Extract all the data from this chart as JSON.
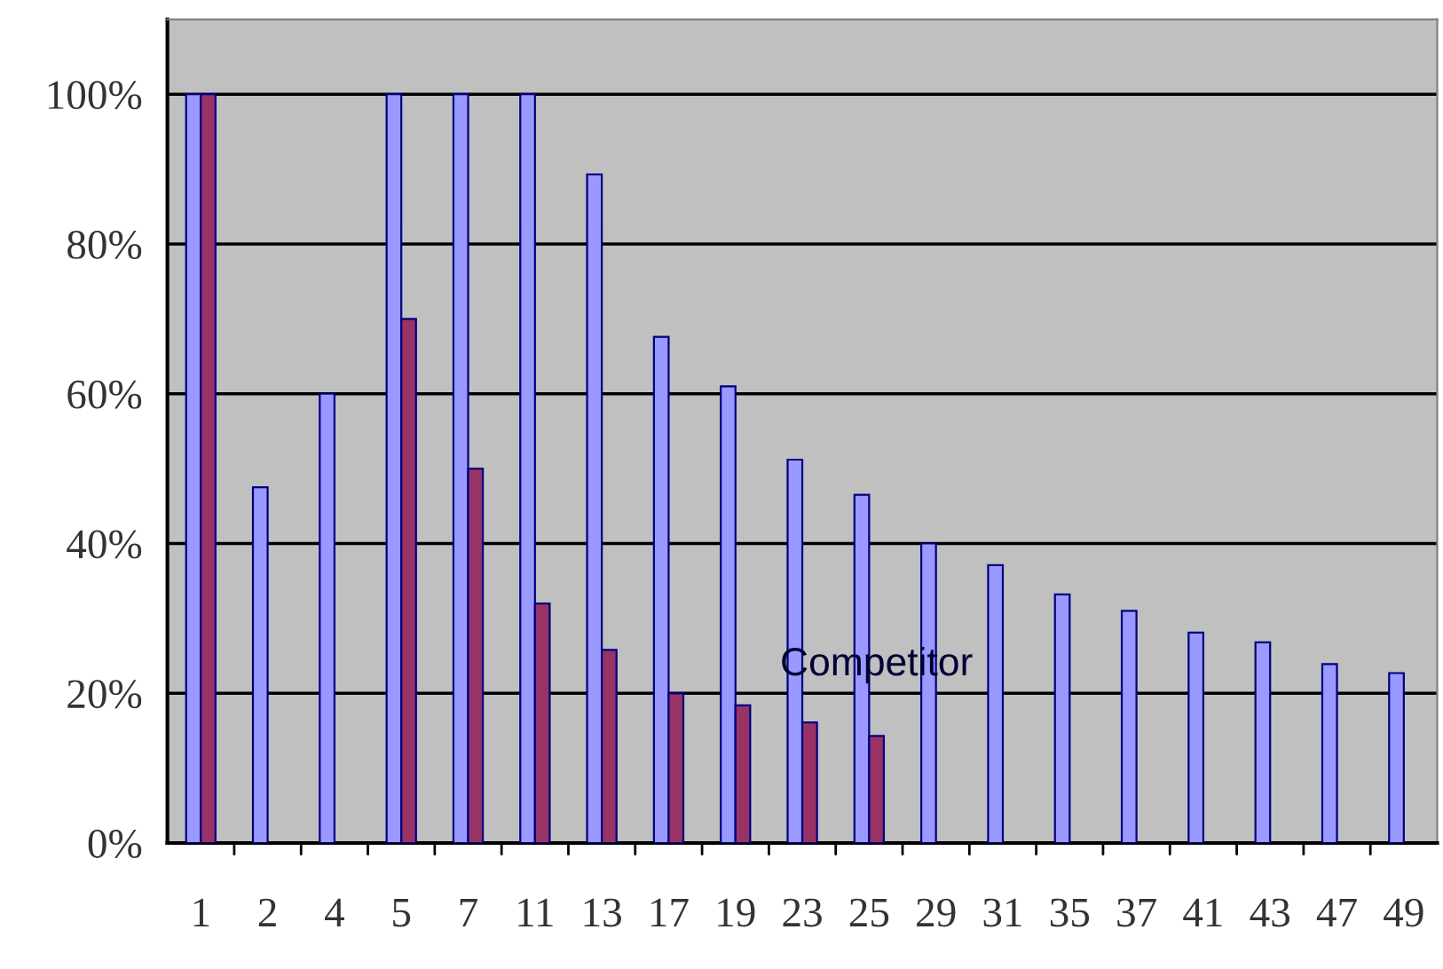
{
  "chart_data": {
    "type": "bar",
    "categories": [
      "1",
      "2",
      "4",
      "5",
      "7",
      "11",
      "13",
      "17",
      "19",
      "23",
      "25",
      "29",
      "31",
      "35",
      "37",
      "41",
      "43",
      "47",
      "49"
    ],
    "series": [
      {
        "color": "#9999ff",
        "values": [
          100,
          47.5,
          60,
          100,
          100,
          100,
          89.3,
          67.6,
          61,
          51.2,
          46.5,
          40,
          37.1,
          33.2,
          31,
          28.1,
          26.8,
          23.9,
          22.7
        ]
      },
      {
        "name": "Competitor",
        "color": "#993366",
        "values": [
          100,
          null,
          null,
          70,
          50,
          32,
          25.8,
          20,
          18.4,
          16.1,
          14.3,
          null,
          null,
          null,
          null,
          null,
          null,
          null,
          null
        ]
      }
    ],
    "ylim": [
      0,
      110
    ],
    "yticks": [
      {
        "value": 0,
        "label": "0%"
      },
      {
        "value": 20,
        "label": "20%"
      },
      {
        "value": 40,
        "label": "40%"
      },
      {
        "value": 60,
        "label": "60%"
      },
      {
        "value": 80,
        "label": "80%"
      },
      {
        "value": 100,
        "label": "100%"
      }
    ],
    "grid": "y",
    "legend": false
  }
}
